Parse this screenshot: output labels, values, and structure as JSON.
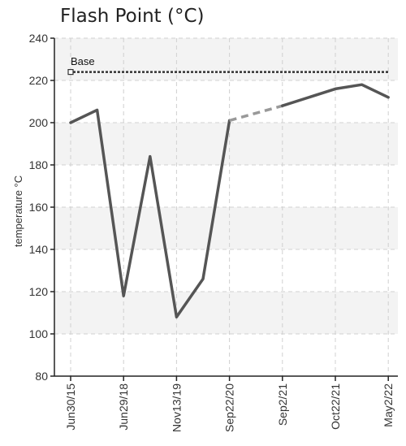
{
  "chart_data": {
    "type": "line",
    "title": "Flash Point (°C)",
    "ylabel": "temperature °C",
    "xlabel": "",
    "ylim": [
      80,
      240
    ],
    "yticks": [
      80,
      100,
      120,
      140,
      160,
      180,
      200,
      220,
      240
    ],
    "xtick_labels": [
      "Jun30/15",
      "Jun29/18",
      "Nov13/19",
      "Sep22/20",
      "Sep2/21",
      "Oct22/21",
      "May2/22"
    ],
    "grid": true,
    "reference_line": {
      "label": "Base",
      "value": 224
    },
    "series": [
      {
        "x": [
          "Jun30/15",
          "",
          "Jun29/18",
          "",
          "Nov13/19",
          "",
          "Sep22/20"
        ],
        "values": [
          200,
          206,
          118,
          184,
          108,
          126,
          201
        ],
        "style": "solid"
      },
      {
        "x": [
          "Sep22/20",
          "Sep2/21"
        ],
        "values": [
          201,
          208
        ],
        "style": "dashed"
      },
      {
        "x": [
          "Sep2/21",
          "Oct22/21",
          "",
          "May2/22"
        ],
        "values": [
          208,
          216,
          218,
          212
        ],
        "style": "solid"
      }
    ],
    "colors": {
      "line": "#555555",
      "dashed": "#999999",
      "reference": "#333333",
      "band": "#f3f3f3"
    }
  }
}
